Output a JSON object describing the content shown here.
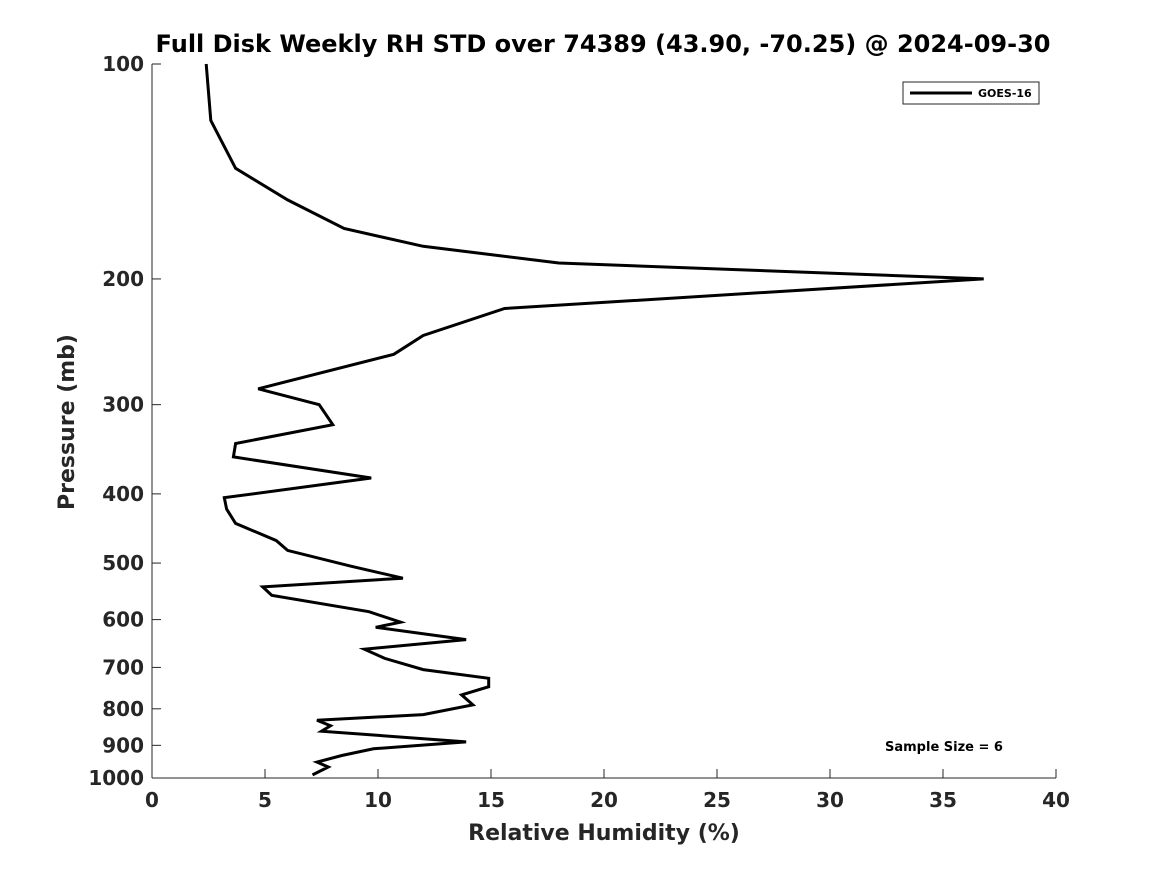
{
  "chart_data": {
    "type": "line",
    "title": "Full Disk Weekly RH STD over 74389 (43.90, -70.25) @ 2024-09-30",
    "xlabel": "Relative Humidity (%)",
    "ylabel": "Pressure (mb)",
    "xlim": [
      0,
      40
    ],
    "ylim": [
      100,
      1000
    ],
    "y_scale": "log",
    "y_reversed": true,
    "x_ticks": [
      "0",
      "5",
      "10",
      "15",
      "20",
      "25",
      "30",
      "35",
      "40"
    ],
    "y_ticks": [
      "100",
      "200",
      "300",
      "400",
      "500",
      "600",
      "700",
      "800",
      "900",
      "1000"
    ],
    "grid": false,
    "legend_position": "top-right",
    "annotation": "Sample Size = 6",
    "series": [
      {
        "name": "GOES-16",
        "color": "#000000",
        "x": [
          2.4,
          2.6,
          3.7,
          6.0,
          8.5,
          12.0,
          18.0,
          36.8,
          15.6,
          12.0,
          10.7,
          4.7,
          7.4,
          8.0,
          3.7,
          3.6,
          9.7,
          3.2,
          3.3,
          3.7,
          5.5,
          6.0,
          8.8,
          11.1,
          4.9,
          5.3,
          9.6,
          11.0,
          9.9,
          13.9,
          9.4,
          10.3,
          12.0,
          14.9,
          14.9,
          13.7,
          14.2,
          12.0,
          7.3,
          7.9,
          7.5,
          13.9,
          9.8,
          8.4,
          7.3,
          7.8,
          7.1
        ],
        "y": [
          100,
          120,
          140,
          155,
          170,
          180,
          190,
          200,
          220,
          240,
          255,
          285,
          300,
          320,
          340,
          355,
          380,
          405,
          420,
          440,
          465,
          480,
          505,
          525,
          540,
          555,
          585,
          605,
          615,
          640,
          660,
          680,
          705,
          725,
          745,
          765,
          790,
          815,
          830,
          845,
          860,
          890,
          910,
          930,
          950,
          965,
          990
        ]
      }
    ]
  }
}
